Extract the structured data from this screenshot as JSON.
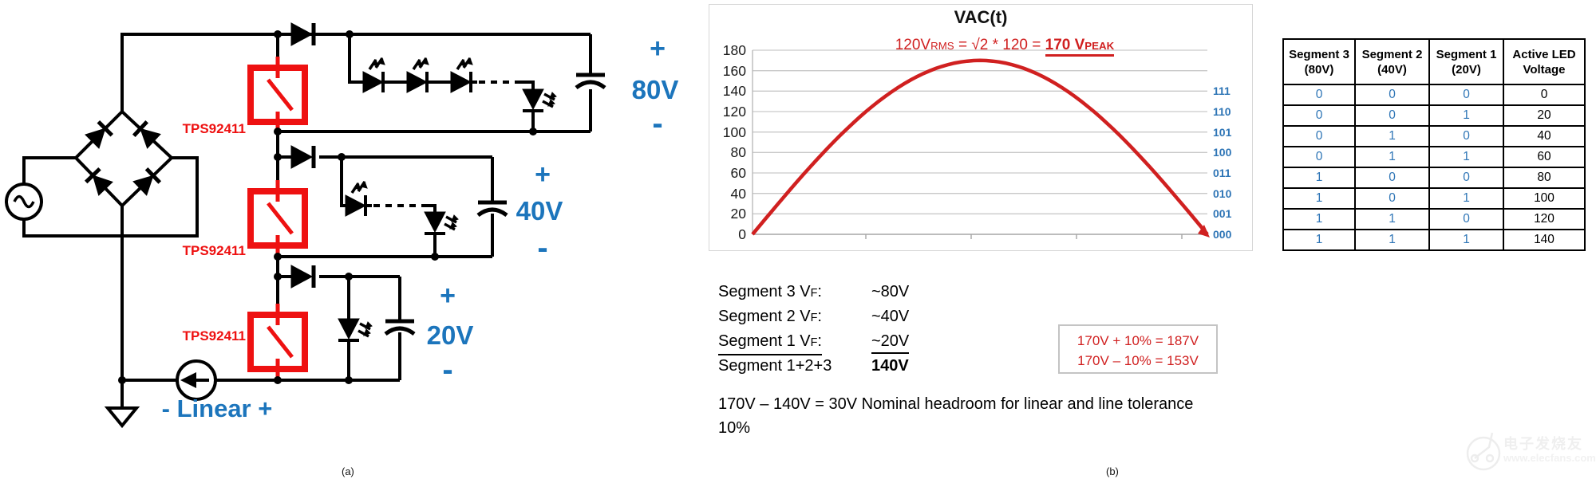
{
  "colors": {
    "circuit_red": "#ee1111",
    "chart_red": "#d02020",
    "circuit_blue": "#1c75bc",
    "table_blue": "#2e75b6",
    "grid_gray": "#c9c9c9",
    "border_gray": "#d6d6d6"
  },
  "circuit": {
    "caption": "(a)",
    "ic_label": "TPS92411",
    "linear_label": "- Linear +",
    "segments": [
      {
        "plus": "+",
        "voltage": "80V",
        "minus": "-"
      },
      {
        "plus": "+",
        "voltage": "40V",
        "minus": "-"
      },
      {
        "plus": "+",
        "voltage": "20V",
        "minus": "-"
      }
    ]
  },
  "chart": {
    "caption": "(b)",
    "title": "VAC(t)",
    "annotation": {
      "t1": "120V",
      "s1": "RMS",
      "t2": " = √2 * 120 = ",
      "t3": "170 V",
      "s2": "PEAK"
    }
  },
  "chart_data": {
    "type": "line",
    "title": "VAC(t)",
    "subtitle": "120VRMS = √2 * 120 = 170 VPEAK",
    "xlabel": "",
    "ylabel": "",
    "ylim": [
      0,
      180
    ],
    "y_ticks": [
      180,
      160,
      140,
      120,
      100,
      80,
      60,
      40,
      20,
      0
    ],
    "grid": true,
    "legend": false,
    "series": [
      {
        "name": "VAC(t)",
        "shape": "rectified half sine",
        "peak": 170,
        "start": 0,
        "end": 0
      }
    ],
    "segment_codes": [
      {
        "code": "111",
        "level": 140
      },
      {
        "code": "110",
        "level": 120
      },
      {
        "code": "101",
        "level": 100
      },
      {
        "code": "100",
        "level": 80
      },
      {
        "code": "011",
        "level": 60
      },
      {
        "code": "010",
        "level": 40
      },
      {
        "code": "001",
        "level": 20
      },
      {
        "code": "000",
        "level": 0
      }
    ]
  },
  "notes": {
    "rows": [
      {
        "pre": "Segment 3 V",
        "sub": "F",
        "post": ":",
        "value": "~80V",
        "underline": false,
        "bold": false
      },
      {
        "pre": "Segment 2 V",
        "sub": "F",
        "post": ":",
        "value": "~40V",
        "underline": false,
        "bold": false
      },
      {
        "pre": "Segment 1 V",
        "sub": "F",
        "post": ":",
        "value": "~20V",
        "underline": true,
        "bold": false
      },
      {
        "pre": "Segment 1+2+3",
        "sub": "",
        "post": "",
        "value": "140V",
        "underline": false,
        "bold": true
      }
    ],
    "headroom": "170V – 140V = 30V Nominal headroom for linear and line tolerance 10%",
    "tolerance_box": [
      "170V + 10% = 187V",
      "170V – 10% = 153V"
    ]
  },
  "table": {
    "headers": [
      [
        "Segment 3",
        "(80V)"
      ],
      [
        "Segment 2",
        "(40V)"
      ],
      [
        "Segment 1",
        "(20V)"
      ],
      [
        "Active LED",
        "Voltage"
      ]
    ],
    "rows": [
      [
        "0",
        "0",
        "0",
        "0"
      ],
      [
        "0",
        "0",
        "1",
        "20"
      ],
      [
        "0",
        "1",
        "0",
        "40"
      ],
      [
        "0",
        "1",
        "1",
        "60"
      ],
      [
        "1",
        "0",
        "0",
        "80"
      ],
      [
        "1",
        "0",
        "1",
        "100"
      ],
      [
        "1",
        "1",
        "0",
        "120"
      ],
      [
        "1",
        "1",
        "1",
        "140"
      ]
    ]
  },
  "watermark": {
    "name": "电子发烧友",
    "url": "www.elecfans.com"
  }
}
